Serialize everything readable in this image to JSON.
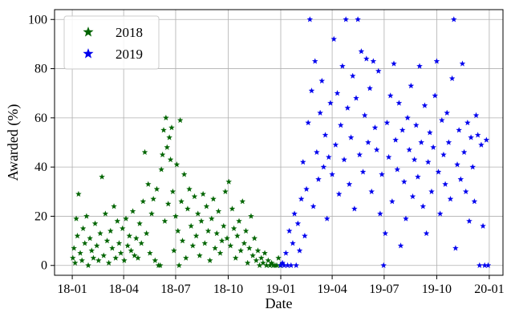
{
  "chart_data": {
    "type": "scatter",
    "title": "",
    "xlabel": "Date",
    "ylabel": "Awarded (%)",
    "x_axis": "date",
    "xlim": [
      "2017-12-01",
      "2020-01-25"
    ],
    "ylim": [
      -4,
      104
    ],
    "grid": true,
    "legend_position": "top-left",
    "marker": "star",
    "xticks": [
      {
        "date": "2018-01-01",
        "label": "18-01"
      },
      {
        "date": "2018-04-01",
        "label": "18-04"
      },
      {
        "date": "2018-07-01",
        "label": "18-07"
      },
      {
        "date": "2018-10-01",
        "label": "18-10"
      },
      {
        "date": "2019-01-01",
        "label": "19-01"
      },
      {
        "date": "2019-04-01",
        "label": "19-04"
      },
      {
        "date": "2019-07-01",
        "label": "19-07"
      },
      {
        "date": "2019-10-01",
        "label": "19-10"
      },
      {
        "date": "2020-01-01",
        "label": "20-01"
      }
    ],
    "yticks": [
      0,
      20,
      40,
      60,
      80,
      100
    ],
    "series": [
      {
        "name": "2018",
        "color": "#006400",
        "points": [
          [
            "2018-01-02",
            3
          ],
          [
            "2018-01-04",
            7
          ],
          [
            "2018-01-06",
            1
          ],
          [
            "2018-01-08",
            19
          ],
          [
            "2018-01-10",
            12
          ],
          [
            "2018-01-12",
            29
          ],
          [
            "2018-01-15",
            5
          ],
          [
            "2018-01-18",
            2
          ],
          [
            "2018-01-20",
            15
          ],
          [
            "2018-01-23",
            9
          ],
          [
            "2018-01-26",
            20
          ],
          [
            "2018-01-29",
            0
          ],
          [
            "2018-02-01",
            11
          ],
          [
            "2018-02-04",
            6
          ],
          [
            "2018-02-07",
            3
          ],
          [
            "2018-02-10",
            17
          ],
          [
            "2018-02-13",
            8
          ],
          [
            "2018-02-16",
            2
          ],
          [
            "2018-02-19",
            13
          ],
          [
            "2018-02-22",
            36
          ],
          [
            "2018-02-25",
            4
          ],
          [
            "2018-02-28",
            21
          ],
          [
            "2018-03-03",
            10
          ],
          [
            "2018-03-06",
            1
          ],
          [
            "2018-03-09",
            14
          ],
          [
            "2018-03-12",
            7
          ],
          [
            "2018-03-15",
            24
          ],
          [
            "2018-03-18",
            3
          ],
          [
            "2018-03-21",
            18
          ],
          [
            "2018-03-24",
            9
          ],
          [
            "2018-03-27",
            5
          ],
          [
            "2018-03-30",
            15
          ],
          [
            "2018-04-02",
            2
          ],
          [
            "2018-04-05",
            19
          ],
          [
            "2018-04-08",
            8
          ],
          [
            "2018-04-11",
            12
          ],
          [
            "2018-04-14",
            6
          ],
          [
            "2018-04-17",
            22
          ],
          [
            "2018-04-20",
            4
          ],
          [
            "2018-04-23",
            11
          ],
          [
            "2018-04-26",
            3
          ],
          [
            "2018-04-29",
            17
          ],
          [
            "2018-05-02",
            9
          ],
          [
            "2018-05-05",
            26
          ],
          [
            "2018-05-08",
            46
          ],
          [
            "2018-05-11",
            13
          ],
          [
            "2018-05-14",
            33
          ],
          [
            "2018-05-17",
            5
          ],
          [
            "2018-05-20",
            21
          ],
          [
            "2018-05-23",
            27
          ],
          [
            "2018-05-26",
            2
          ],
          [
            "2018-05-29",
            31
          ],
          [
            "2018-06-01",
            0
          ],
          [
            "2018-06-04",
            0
          ],
          [
            "2018-06-06",
            39
          ],
          [
            "2018-06-08",
            45
          ],
          [
            "2018-06-10",
            55
          ],
          [
            "2018-06-12",
            18
          ],
          [
            "2018-06-14",
            60
          ],
          [
            "2018-06-16",
            48
          ],
          [
            "2018-06-18",
            25
          ],
          [
            "2018-06-20",
            52
          ],
          [
            "2018-06-22",
            43
          ],
          [
            "2018-06-24",
            56
          ],
          [
            "2018-06-26",
            30
          ],
          [
            "2018-06-28",
            6
          ],
          [
            "2018-07-01",
            20
          ],
          [
            "2018-07-03",
            41
          ],
          [
            "2018-07-05",
            14
          ],
          [
            "2018-07-07",
            0
          ],
          [
            "2018-07-09",
            59
          ],
          [
            "2018-07-11",
            26
          ],
          [
            "2018-07-13",
            10
          ],
          [
            "2018-07-16",
            37
          ],
          [
            "2018-07-19",
            3
          ],
          [
            "2018-07-22",
            23
          ],
          [
            "2018-07-25",
            31
          ],
          [
            "2018-07-28",
            16
          ],
          [
            "2018-07-31",
            8
          ],
          [
            "2018-08-03",
            28
          ],
          [
            "2018-08-06",
            12
          ],
          [
            "2018-08-09",
            21
          ],
          [
            "2018-08-12",
            4
          ],
          [
            "2018-08-15",
            18
          ],
          [
            "2018-08-18",
            29
          ],
          [
            "2018-08-21",
            9
          ],
          [
            "2018-08-24",
            24
          ],
          [
            "2018-08-27",
            14
          ],
          [
            "2018-08-30",
            2
          ],
          [
            "2018-09-02",
            19
          ],
          [
            "2018-09-05",
            27
          ],
          [
            "2018-09-08",
            7
          ],
          [
            "2018-09-11",
            13
          ],
          [
            "2018-09-14",
            22
          ],
          [
            "2018-09-17",
            5
          ],
          [
            "2018-09-20",
            10
          ],
          [
            "2018-09-23",
            16
          ],
          [
            "2018-09-26",
            30
          ],
          [
            "2018-09-29",
            11
          ],
          [
            "2018-10-02",
            34
          ],
          [
            "2018-10-05",
            8
          ],
          [
            "2018-10-08",
            23
          ],
          [
            "2018-10-11",
            15
          ],
          [
            "2018-10-14",
            3
          ],
          [
            "2018-10-17",
            12
          ],
          [
            "2018-10-20",
            18
          ],
          [
            "2018-10-23",
            6
          ],
          [
            "2018-10-26",
            26
          ],
          [
            "2018-10-29",
            9
          ],
          [
            "2018-11-01",
            14
          ],
          [
            "2018-11-04",
            1
          ],
          [
            "2018-11-07",
            7
          ],
          [
            "2018-11-10",
            20
          ],
          [
            "2018-11-13",
            4
          ],
          [
            "2018-11-16",
            11
          ],
          [
            "2018-11-19",
            2
          ],
          [
            "2018-11-22",
            6
          ],
          [
            "2018-11-25",
            0
          ],
          [
            "2018-11-28",
            3
          ],
          [
            "2018-12-01",
            1
          ],
          [
            "2018-12-04",
            5
          ],
          [
            "2018-12-07",
            0
          ],
          [
            "2018-12-10",
            2
          ],
          [
            "2018-12-13",
            0
          ],
          [
            "2018-12-16",
            1
          ],
          [
            "2018-12-19",
            0
          ],
          [
            "2018-12-22",
            0
          ],
          [
            "2018-12-25",
            0
          ],
          [
            "2018-12-28",
            3
          ],
          [
            "2018-12-31",
            0
          ]
        ]
      },
      {
        "name": "2019",
        "color": "#0000ee",
        "points": [
          [
            "2019-01-01",
            0
          ],
          [
            "2019-01-04",
            1
          ],
          [
            "2019-01-07",
            0
          ],
          [
            "2019-01-10",
            5
          ],
          [
            "2019-01-13",
            0
          ],
          [
            "2019-01-16",
            14
          ],
          [
            "2019-01-19",
            0
          ],
          [
            "2019-01-22",
            9
          ],
          [
            "2019-01-25",
            21
          ],
          [
            "2019-01-28",
            0
          ],
          [
            "2019-01-31",
            17
          ],
          [
            "2019-02-03",
            6
          ],
          [
            "2019-02-06",
            27
          ],
          [
            "2019-02-09",
            42
          ],
          [
            "2019-02-12",
            12
          ],
          [
            "2019-02-15",
            31
          ],
          [
            "2019-02-18",
            58
          ],
          [
            "2019-02-21",
            100
          ],
          [
            "2019-02-24",
            71
          ],
          [
            "2019-02-27",
            24
          ],
          [
            "2019-03-02",
            83
          ],
          [
            "2019-03-05",
            46
          ],
          [
            "2019-03-08",
            35
          ],
          [
            "2019-03-11",
            62
          ],
          [
            "2019-03-14",
            75
          ],
          [
            "2019-03-17",
            40
          ],
          [
            "2019-03-20",
            53
          ],
          [
            "2019-03-23",
            19
          ],
          [
            "2019-03-26",
            44
          ],
          [
            "2019-03-29",
            66
          ],
          [
            "2019-04-01",
            37
          ],
          [
            "2019-04-04",
            92
          ],
          [
            "2019-04-07",
            49
          ],
          [
            "2019-04-10",
            70
          ],
          [
            "2019-04-13",
            29
          ],
          [
            "2019-04-16",
            57
          ],
          [
            "2019-04-19",
            81
          ],
          [
            "2019-04-22",
            43
          ],
          [
            "2019-04-25",
            100
          ],
          [
            "2019-04-28",
            64
          ],
          [
            "2019-05-01",
            33
          ],
          [
            "2019-05-04",
            52
          ],
          [
            "2019-05-07",
            77
          ],
          [
            "2019-05-10",
            23
          ],
          [
            "2019-05-13",
            68
          ],
          [
            "2019-05-16",
            100
          ],
          [
            "2019-05-19",
            45
          ],
          [
            "2019-05-22",
            87
          ],
          [
            "2019-05-25",
            38
          ],
          [
            "2019-05-28",
            61
          ],
          [
            "2019-05-31",
            84
          ],
          [
            "2019-06-03",
            50
          ],
          [
            "2019-06-06",
            72
          ],
          [
            "2019-06-09",
            30
          ],
          [
            "2019-06-12",
            83
          ],
          [
            "2019-06-15",
            56
          ],
          [
            "2019-06-18",
            47
          ],
          [
            "2019-06-21",
            79
          ],
          [
            "2019-06-24",
            21
          ],
          [
            "2019-06-27",
            37
          ],
          [
            "2019-06-30",
            0
          ],
          [
            "2019-07-03",
            13
          ],
          [
            "2019-07-06",
            58
          ],
          [
            "2019-07-09",
            44
          ],
          [
            "2019-07-12",
            69
          ],
          [
            "2019-07-15",
            26
          ],
          [
            "2019-07-18",
            82
          ],
          [
            "2019-07-21",
            51
          ],
          [
            "2019-07-24",
            39
          ],
          [
            "2019-07-27",
            66
          ],
          [
            "2019-07-30",
            8
          ],
          [
            "2019-08-02",
            55
          ],
          [
            "2019-08-05",
            34
          ],
          [
            "2019-08-08",
            19
          ],
          [
            "2019-08-11",
            60
          ],
          [
            "2019-08-14",
            47
          ],
          [
            "2019-08-17",
            73
          ],
          [
            "2019-08-20",
            28
          ],
          [
            "2019-08-23",
            43
          ],
          [
            "2019-08-26",
            57
          ],
          [
            "2019-08-29",
            36
          ],
          [
            "2019-09-01",
            81
          ],
          [
            "2019-09-04",
            50
          ],
          [
            "2019-09-07",
            24
          ],
          [
            "2019-09-10",
            65
          ],
          [
            "2019-09-13",
            13
          ],
          [
            "2019-09-16",
            42
          ],
          [
            "2019-09-19",
            54
          ],
          [
            "2019-09-22",
            30
          ],
          [
            "2019-09-25",
            48
          ],
          [
            "2019-09-28",
            69
          ],
          [
            "2019-10-01",
            83
          ],
          [
            "2019-10-04",
            38
          ],
          [
            "2019-10-07",
            21
          ],
          [
            "2019-10-10",
            59
          ],
          [
            "2019-10-13",
            45
          ],
          [
            "2019-10-16",
            33
          ],
          [
            "2019-10-19",
            62
          ],
          [
            "2019-10-22",
            50
          ],
          [
            "2019-10-25",
            27
          ],
          [
            "2019-10-28",
            76
          ],
          [
            "2019-10-31",
            100
          ],
          [
            "2019-11-03",
            7
          ],
          [
            "2019-11-06",
            41
          ],
          [
            "2019-11-09",
            55
          ],
          [
            "2019-11-12",
            35
          ],
          [
            "2019-11-15",
            82
          ],
          [
            "2019-11-18",
            46
          ],
          [
            "2019-11-21",
            30
          ],
          [
            "2019-11-24",
            58
          ],
          [
            "2019-11-27",
            18
          ],
          [
            "2019-11-30",
            52
          ],
          [
            "2019-12-03",
            40
          ],
          [
            "2019-12-06",
            26
          ],
          [
            "2019-12-09",
            61
          ],
          [
            "2019-12-12",
            53
          ],
          [
            "2019-12-15",
            0
          ],
          [
            "2019-12-18",
            49
          ],
          [
            "2019-12-21",
            16
          ],
          [
            "2019-12-24",
            0
          ],
          [
            "2019-12-27",
            51
          ],
          [
            "2019-12-30",
            0
          ]
        ]
      }
    ]
  }
}
